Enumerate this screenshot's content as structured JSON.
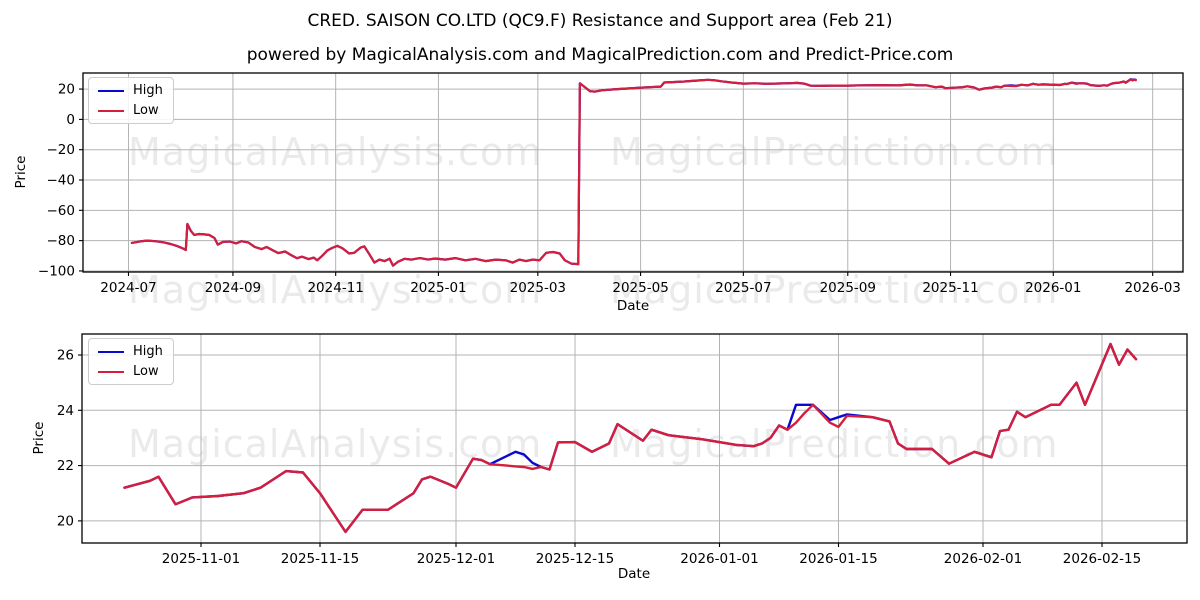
{
  "figure": {
    "title": "CRED. SAISON CO.LTD (QC9.F) Resistance and Support area (Feb 21)",
    "subtitle": "powered by MagicalAnalysis.com and MagicalPrediction.com and Predict-Price.com"
  },
  "watermarks": {
    "left": "MagicalAnalysis.com",
    "right": "MagicalPrediction.com"
  },
  "legend": {
    "high_label": "High",
    "low_label": "Low"
  },
  "colors": {
    "high": "#0808cf",
    "low": "#d41e3c",
    "grid": "#b3b3b3",
    "spine": "#000000",
    "watermark": "#5a5a5a"
  },
  "chart_data": [
    {
      "type": "line",
      "title": "",
      "xlabel": "Date",
      "ylabel": "Price",
      "grid": true,
      "legend_position": "upper left",
      "legend_entries": [
        "High",
        "Low"
      ],
      "xlim": [
        "2024-06-04",
        "2026-03-19"
      ],
      "ylim": [
        -100.7,
        30.6
      ],
      "x_ticks": [
        "2024-07",
        "2024-09",
        "2024-11",
        "2025-01",
        "2025-03",
        "2025-05",
        "2025-07",
        "2025-09",
        "2025-11",
        "2026-01",
        "2026-03"
      ],
      "y_ticks": [
        20,
        0,
        -20,
        -40,
        -60,
        -80,
        -100
      ],
      "series_names": [
        "High",
        "Low"
      ],
      "points_format": [
        "date",
        "low",
        "high_if_different"
      ],
      "points": [
        [
          "2024-07-03",
          -81.5
        ],
        [
          "2024-07-08",
          -80.5
        ],
        [
          "2024-07-12",
          -80.0
        ],
        [
          "2024-07-17",
          -80.4
        ],
        [
          "2024-07-22",
          -81.2
        ],
        [
          "2024-07-26",
          -82.2
        ],
        [
          "2024-07-30",
          -83.6
        ],
        [
          "2024-08-02",
          -85.0
        ],
        [
          "2024-08-04",
          -86.2
        ],
        [
          "2024-08-05",
          -69.0
        ],
        [
          "2024-08-07",
          -73.5
        ],
        [
          "2024-08-09",
          -76.2
        ],
        [
          "2024-08-12",
          -75.6
        ],
        [
          "2024-08-15",
          -75.9
        ],
        [
          "2024-08-18",
          -76.3
        ],
        [
          "2024-08-21",
          -78.2
        ],
        [
          "2024-08-23",
          -82.6
        ],
        [
          "2024-08-26",
          -80.9
        ],
        [
          "2024-08-30",
          -80.6
        ],
        [
          "2024-09-03",
          -81.8
        ],
        [
          "2024-09-06",
          -80.4
        ],
        [
          "2024-09-10",
          -81.2
        ],
        [
          "2024-09-14",
          -84.2
        ],
        [
          "2024-09-18",
          -85.6
        ],
        [
          "2024-09-21",
          -84.2
        ],
        [
          "2024-09-25",
          -86.6
        ],
        [
          "2024-09-28",
          -88.2
        ],
        [
          "2024-10-02",
          -87.2
        ],
        [
          "2024-10-05",
          -89.2
        ],
        [
          "2024-10-09",
          -91.6
        ],
        [
          "2024-10-12",
          -90.6
        ],
        [
          "2024-10-16",
          -92.2
        ],
        [
          "2024-10-19",
          -91.2
        ],
        [
          "2024-10-21",
          -93.0
        ],
        [
          "2024-10-24",
          -90.0
        ],
        [
          "2024-10-27",
          -86.5
        ],
        [
          "2024-10-30",
          -84.8
        ],
        [
          "2024-11-02",
          -83.5
        ],
        [
          "2024-11-05",
          -85.0
        ],
        [
          "2024-11-09",
          -88.5
        ],
        [
          "2024-11-12",
          -88.0
        ],
        [
          "2024-11-16",
          -84.5
        ],
        [
          "2024-11-18",
          -83.8
        ],
        [
          "2024-11-21",
          -89.0
        ],
        [
          "2024-11-24",
          -94.5
        ],
        [
          "2024-11-27",
          -92.5
        ],
        [
          "2024-11-30",
          -93.5
        ],
        [
          "2024-12-03",
          -92.0
        ],
        [
          "2024-12-05",
          -96.5
        ],
        [
          "2024-12-08",
          -94.0
        ],
        [
          "2024-12-12",
          -92.0
        ],
        [
          "2024-12-16",
          -92.5
        ],
        [
          "2024-12-21",
          -91.5
        ],
        [
          "2024-12-26",
          -92.5
        ],
        [
          "2024-12-30",
          -91.8
        ],
        [
          "2025-01-05",
          -92.5
        ],
        [
          "2025-01-11",
          -91.5
        ],
        [
          "2025-01-17",
          -93.0
        ],
        [
          "2025-01-23",
          -92.0
        ],
        [
          "2025-01-29",
          -93.5
        ],
        [
          "2025-02-04",
          -92.5
        ],
        [
          "2025-02-10",
          -93.0
        ],
        [
          "2025-02-14",
          -94.5
        ],
        [
          "2025-02-18",
          -92.5
        ],
        [
          "2025-02-22",
          -93.5
        ],
        [
          "2025-02-26",
          -92.5
        ],
        [
          "2025-03-02",
          -93.0
        ],
        [
          "2025-03-06",
          -88.0
        ],
        [
          "2025-03-10",
          -87.5
        ],
        [
          "2025-03-14",
          -88.5
        ],
        [
          "2025-03-17",
          -93.0
        ],
        [
          "2025-03-21",
          -95.2
        ],
        [
          "2025-03-25",
          -95.5
        ],
        [
          "2025-03-26",
          23.8
        ],
        [
          "2025-04-01",
          18.6
        ],
        [
          "2025-04-04",
          18.3
        ],
        [
          "2025-04-08",
          19.2
        ],
        [
          "2025-04-15",
          19.8
        ],
        [
          "2025-04-22",
          20.3
        ],
        [
          "2025-04-29",
          20.8
        ],
        [
          "2025-05-06",
          21.2
        ],
        [
          "2025-05-13",
          21.6
        ],
        [
          "2025-05-15",
          24.3
        ],
        [
          "2025-05-20",
          24.6
        ],
        [
          "2025-05-27",
          25.0
        ],
        [
          "2025-06-03",
          25.6
        ],
        [
          "2025-06-10",
          26.1
        ],
        [
          "2025-06-14",
          25.8
        ],
        [
          "2025-06-18",
          25.1
        ],
        [
          "2025-06-24",
          24.3
        ],
        [
          "2025-07-01",
          23.6
        ],
        [
          "2025-07-08",
          23.8
        ],
        [
          "2025-07-15",
          23.5
        ],
        [
          "2025-07-22",
          23.7
        ],
        [
          "2025-07-29",
          23.9
        ],
        [
          "2025-08-02",
          24.1
        ],
        [
          "2025-08-06",
          23.6
        ],
        [
          "2025-08-10",
          22.2
        ],
        [
          "2025-08-16",
          22.1
        ],
        [
          "2025-08-22",
          22.3
        ],
        [
          "2025-09-01",
          22.3
        ],
        [
          "2025-09-10",
          22.5
        ],
        [
          "2025-09-20",
          22.6
        ],
        [
          "2025-10-01",
          22.4
        ],
        [
          "2025-10-08",
          23.0
        ],
        [
          "2025-10-12",
          22.5
        ],
        [
          "2025-10-18",
          22.4
        ],
        [
          "2025-10-23",
          21.2
        ],
        [
          "2025-10-27",
          21.6
        ],
        [
          "2025-10-29",
          20.6
        ],
        [
          "2025-11-03",
          20.9
        ],
        [
          "2025-11-08",
          21.2
        ],
        [
          "2025-11-11",
          21.8
        ],
        [
          "2025-11-15",
          21.0
        ],
        [
          "2025-11-18",
          19.6
        ],
        [
          "2025-11-21",
          20.4
        ],
        [
          "2025-11-26",
          21.0
        ],
        [
          "2025-11-28",
          21.6
        ],
        [
          "2025-12-01",
          21.2
        ],
        [
          "2025-12-03",
          22.25
        ],
        [
          "2025-12-07",
          22.0,
          22.4
        ],
        [
          "2025-12-10",
          21.9,
          22.15
        ],
        [
          "2025-12-13",
          22.84
        ],
        [
          "2025-12-17",
          22.5
        ],
        [
          "2025-12-20",
          23.5
        ],
        [
          "2025-12-23",
          22.9
        ],
        [
          "2025-12-26",
          23.1
        ],
        [
          "2025-12-30",
          22.95
        ],
        [
          "2026-01-05",
          22.7
        ],
        [
          "2026-01-08",
          23.45
        ],
        [
          "2026-01-09",
          23.3
        ],
        [
          "2026-01-12",
          24.2,
          24.25
        ],
        [
          "2026-01-15",
          23.4,
          23.7
        ],
        [
          "2026-01-16",
          23.8
        ],
        [
          "2026-01-19",
          23.75
        ],
        [
          "2026-01-21",
          23.6
        ],
        [
          "2026-01-23",
          22.6
        ],
        [
          "2026-01-28",
          22.07
        ],
        [
          "2026-01-31",
          22.5
        ],
        [
          "2026-02-02",
          22.3
        ],
        [
          "2026-02-04",
          23.3
        ],
        [
          "2026-02-06",
          23.95
        ],
        [
          "2026-02-09",
          24.2
        ],
        [
          "2026-02-12",
          25.0
        ],
        [
          "2026-02-13",
          24.2
        ],
        [
          "2026-02-16",
          26.4,
          26.6
        ],
        [
          "2026-02-17",
          25.65,
          26.0
        ],
        [
          "2026-02-18",
          26.2,
          26.4
        ],
        [
          "2026-02-19",
          25.85,
          26.1
        ]
      ]
    },
    {
      "type": "line",
      "title": "",
      "xlabel": "Date",
      "ylabel": "Price",
      "grid": true,
      "legend_position": "upper left",
      "legend_entries": [
        "High",
        "Low"
      ],
      "xlim": [
        "2025-10-18",
        "2026-02-25"
      ],
      "ylim": [
        19.2,
        26.76
      ],
      "x_ticks": [
        "2025-11-01",
        "2025-11-15",
        "2025-12-01",
        "2025-12-15",
        "2026-01-01",
        "2026-01-15",
        "2026-02-01",
        "2026-02-15"
      ],
      "y_ticks": [
        20,
        22,
        24,
        26
      ],
      "series_names": [
        "High",
        "Low"
      ],
      "points_format": [
        "date",
        "low",
        "high_if_different"
      ],
      "points": [
        [
          "2025-10-23",
          21.2
        ],
        [
          "2025-10-26",
          21.45
        ],
        [
          "2025-10-27",
          21.6
        ],
        [
          "2025-10-29",
          20.6
        ],
        [
          "2025-10-31",
          20.85
        ],
        [
          "2025-11-03",
          20.9
        ],
        [
          "2025-11-06",
          21.0
        ],
        [
          "2025-11-08",
          21.2
        ],
        [
          "2025-11-11",
          21.8
        ],
        [
          "2025-11-13",
          21.75
        ],
        [
          "2025-11-15",
          21.0
        ],
        [
          "2025-11-18",
          19.6
        ],
        [
          "2025-11-20",
          20.4
        ],
        [
          "2025-11-23",
          20.4
        ],
        [
          "2025-11-26",
          21.0
        ],
        [
          "2025-11-27",
          21.5
        ],
        [
          "2025-11-28",
          21.6
        ],
        [
          "2025-11-30",
          21.35
        ],
        [
          "2025-12-01",
          21.2
        ],
        [
          "2025-12-03",
          22.25
        ],
        [
          "2025-12-04",
          22.2
        ],
        [
          "2025-12-05",
          22.05
        ],
        [
          "2025-12-07",
          22.0,
          22.35
        ],
        [
          "2025-12-08",
          21.97,
          22.5
        ],
        [
          "2025-12-09",
          21.95,
          22.4
        ],
        [
          "2025-12-10",
          21.88,
          22.1
        ],
        [
          "2025-12-11",
          21.95
        ],
        [
          "2025-12-12",
          21.86
        ],
        [
          "2025-12-13",
          22.84
        ],
        [
          "2025-12-15",
          22.85
        ],
        [
          "2025-12-17",
          22.5
        ],
        [
          "2025-12-19",
          22.8
        ],
        [
          "2025-12-20",
          23.5
        ],
        [
          "2025-12-22",
          23.1
        ],
        [
          "2025-12-23",
          22.9
        ],
        [
          "2025-12-24",
          23.3
        ],
        [
          "2025-12-26",
          23.1
        ],
        [
          "2025-12-30",
          22.95
        ],
        [
          "2026-01-03",
          22.75
        ],
        [
          "2026-01-05",
          22.7
        ],
        [
          "2026-01-06",
          22.8
        ],
        [
          "2026-01-07",
          23.0
        ],
        [
          "2026-01-08",
          23.45
        ],
        [
          "2026-01-09",
          23.3
        ],
        [
          "2026-01-10",
          23.55,
          24.2
        ],
        [
          "2026-01-11",
          23.9,
          24.2
        ],
        [
          "2026-01-12",
          24.2
        ],
        [
          "2026-01-14",
          23.55,
          23.65
        ],
        [
          "2026-01-15",
          23.4,
          23.75
        ],
        [
          "2026-01-16",
          23.8,
          23.85
        ],
        [
          "2026-01-19",
          23.75
        ],
        [
          "2026-01-21",
          23.6
        ],
        [
          "2026-01-22",
          22.8
        ],
        [
          "2026-01-23",
          22.6
        ],
        [
          "2026-01-26",
          22.6
        ],
        [
          "2026-01-28",
          22.07
        ],
        [
          "2026-01-31",
          22.5
        ],
        [
          "2026-02-02",
          22.3
        ],
        [
          "2026-02-03",
          23.25
        ],
        [
          "2026-02-04",
          23.3
        ],
        [
          "2026-02-05",
          23.95
        ],
        [
          "2026-02-06",
          23.75
        ],
        [
          "2026-02-08",
          24.05
        ],
        [
          "2026-02-09",
          24.2
        ],
        [
          "2026-02-10",
          24.2
        ],
        [
          "2026-02-12",
          25.0
        ],
        [
          "2026-02-13",
          24.2
        ],
        [
          "2026-02-16",
          26.4
        ],
        [
          "2026-02-17",
          25.65
        ],
        [
          "2026-02-18",
          26.2
        ],
        [
          "2026-02-19",
          25.85
        ]
      ]
    }
  ]
}
